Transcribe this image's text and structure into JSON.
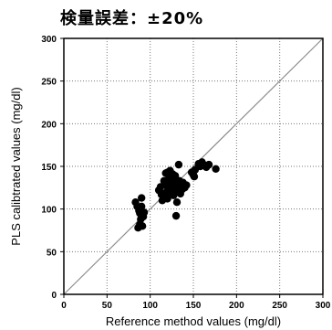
{
  "chart_data": {
    "type": "scatter",
    "title": "検量誤差：±20%",
    "xlabel": "Reference method values (mg/dl)",
    "ylabel": "PLS calibtrated values (mg/dl)",
    "xlim": [
      0,
      300
    ],
    "ylim": [
      0,
      300
    ],
    "xticks": [
      0,
      50,
      100,
      150,
      200,
      250,
      300
    ],
    "yticks": [
      0,
      50,
      100,
      150,
      200,
      250,
      300
    ],
    "grid": true,
    "reference_line": "y = x",
    "colors": {
      "points": "#000000",
      "reference_line": "#8c8c8c",
      "grid": "#777777"
    },
    "series": [
      {
        "points": [
          [
            83,
            108
          ],
          [
            85,
            103
          ],
          [
            86,
            78
          ],
          [
            87,
            98
          ],
          [
            88,
            82
          ],
          [
            88,
            95
          ],
          [
            89,
            88
          ],
          [
            90,
            113
          ],
          [
            90,
            103
          ],
          [
            91,
            80
          ],
          [
            92,
            91
          ],
          [
            93,
            96
          ],
          [
            110,
            122
          ],
          [
            112,
            126
          ],
          [
            113,
            117
          ],
          [
            114,
            110
          ],
          [
            115,
            118
          ],
          [
            116,
            133
          ],
          [
            117,
            114
          ],
          [
            118,
            142
          ],
          [
            118,
            128
          ],
          [
            119,
            120
          ],
          [
            120,
            143
          ],
          [
            120,
            112
          ],
          [
            121,
            131
          ],
          [
            122,
            125
          ],
          [
            122,
            138
          ],
          [
            123,
            145
          ],
          [
            123,
            118
          ],
          [
            124,
            130
          ],
          [
            125,
            136
          ],
          [
            125,
            122
          ],
          [
            126,
            127
          ],
          [
            126,
            141
          ],
          [
            127,
            116
          ],
          [
            127,
            132
          ],
          [
            128,
            126
          ],
          [
            128,
            119
          ],
          [
            129,
            139
          ],
          [
            129,
            135
          ],
          [
            130,
            92
          ],
          [
            130,
            130
          ],
          [
            131,
            124
          ],
          [
            131,
            108
          ],
          [
            132,
            128
          ],
          [
            133,
            121
          ],
          [
            133,
            152
          ],
          [
            134,
            133
          ],
          [
            135,
            118
          ],
          [
            136,
            127
          ],
          [
            137,
            123
          ],
          [
            138,
            131
          ],
          [
            140,
            125
          ],
          [
            142,
            128
          ],
          [
            148,
            143
          ],
          [
            150,
            140
          ],
          [
            151,
            138
          ],
          [
            152,
            146
          ],
          [
            156,
            153
          ],
          [
            158,
            150
          ],
          [
            160,
            155
          ],
          [
            162,
            152
          ],
          [
            165,
            149
          ],
          [
            168,
            152
          ],
          [
            176,
            147
          ]
        ]
      }
    ]
  }
}
